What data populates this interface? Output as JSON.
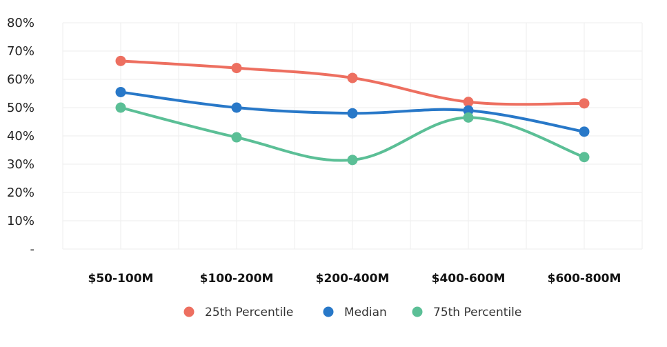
{
  "chart_data": {
    "type": "line",
    "title": "",
    "xlabel": "",
    "ylabel": "",
    "categories": [
      "$50-100M",
      "$100-200M",
      "$200-400M",
      "$400-600M",
      "$600-800M"
    ],
    "y_ticks": [
      "-",
      "10%",
      "20%",
      "30%",
      "40%",
      "50%",
      "60%",
      "70%",
      "80%"
    ],
    "ylim": [
      0,
      80
    ],
    "grid": true,
    "legend_position": "bottom",
    "series": [
      {
        "name": "25th Percentile",
        "color": "#ED6F60",
        "values": [
          66.5,
          64,
          60.5,
          52,
          51.5
        ]
      },
      {
        "name": "Median",
        "color": "#2878C8",
        "values": [
          55.5,
          50,
          48,
          49,
          41.5
        ]
      },
      {
        "name": "75th Percentile",
        "color": "#5BBF96",
        "values": [
          50,
          39.5,
          31.5,
          46.5,
          32.5
        ]
      }
    ]
  }
}
